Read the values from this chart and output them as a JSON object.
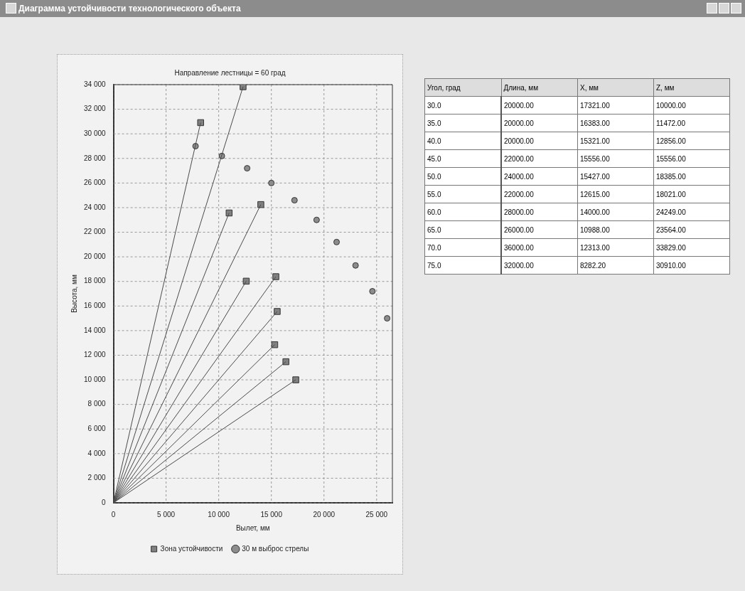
{
  "chart_data": [
    {
      "type": "scatter",
      "title": "Направление лестницы = 60 град",
      "xlabel": "Вылет, мм",
      "ylabel": "Высота, мм",
      "annotations": [
        "Диаграмма устойчивости технологического объекта"
      ],
      "xlim": [
        0,
        26500
      ],
      "xticks": [
        0,
        {
          "value": 5000,
          "label": "5 000"
        },
        {
          "value": 10000,
          "label": "10 000"
        },
        {
          "value": 15000,
          "label": "15 000"
        },
        {
          "value": 20000,
          "label": "20 000"
        },
        {
          "value": 25000,
          "label": "25 000"
        }
      ],
      "ylim": [
        0,
        34000
      ],
      "yticks": [
        0,
        {
          "value": 2000,
          "label": "2 000"
        },
        {
          "value": 4000,
          "label": "4 000"
        },
        {
          "value": 6000,
          "label": "6 000"
        },
        {
          "value": 8000,
          "label": "8 000"
        },
        {
          "value": 10000,
          "label": "10 000"
        },
        {
          "value": 12000,
          "label": "12 000"
        },
        {
          "value": 14000,
          "label": "14 000"
        },
        {
          "value": 16000,
          "label": "16 000"
        },
        {
          "value": 18000,
          "label": "18 000"
        },
        {
          "value": 20000,
          "label": "20 000"
        },
        {
          "value": 22000,
          "label": "22 000"
        },
        {
          "value": 24000,
          "label": "24 000"
        },
        {
          "value": 26000,
          "label": "26 000"
        },
        {
          "value": 28000,
          "label": "28 000"
        },
        {
          "value": 30000,
          "label": "30 000"
        },
        {
          "value": 32000,
          "label": "32 000"
        },
        {
          "value": 34000,
          "label": "34 000"
        }
      ],
      "grid": true,
      "legend": "bottom",
      "series": [
        {
          "type": "line",
          "color": "#4a4a4a",
          "marker": "none",
          "x": [
            0,
            17321
          ],
          "values": [
            0,
            10000
          ]
        },
        {
          "type": "line",
          "color": "#4a4a4a",
          "marker": "none",
          "x": [
            0,
            16383
          ],
          "values": [
            0,
            11472
          ]
        },
        {
          "type": "line",
          "color": "#4a4a4a",
          "marker": "none",
          "x": [
            0,
            15321
          ],
          "values": [
            0,
            12856
          ]
        },
        {
          "type": "line",
          "color": "#4a4a4a",
          "marker": "none",
          "x": [
            0,
            15556
          ],
          "values": [
            0,
            15556
          ]
        },
        {
          "type": "line",
          "color": "#4a4a4a",
          "marker": "none",
          "x": [
            0,
            15427
          ],
          "values": [
            0,
            18385
          ]
        },
        {
          "type": "line",
          "color": "#4a4a4a",
          "marker": "none",
          "x": [
            0,
            12615
          ],
          "values": [
            0,
            18021
          ]
        },
        {
          "type": "line",
          "color": "#4a4a4a",
          "marker": "none",
          "x": [
            0,
            14000
          ],
          "values": [
            0,
            24249
          ]
        },
        {
          "type": "line",
          "color": "#4a4a4a",
          "marker": "none",
          "x": [
            0,
            10988
          ],
          "values": [
            0,
            23564
          ]
        },
        {
          "type": "line",
          "color": "#4a4a4a",
          "marker": "none",
          "x": [
            0,
            12313
          ],
          "values": [
            0,
            33829
          ]
        },
        {
          "type": "line",
          "color": "#4a4a4a",
          "marker": "none",
          "x": [
            0,
            8282.2
          ],
          "values": [
            0,
            30910
          ]
        },
        {
          "type": "scatter",
          "name": "Зона устойчивости",
          "color": "#808080",
          "marker": "square",
          "x": [
            17321,
            16383,
            15321,
            15556,
            15427,
            12615,
            14000,
            10988,
            12313,
            8282.2
          ],
          "values": [
            10000,
            11472,
            12856,
            15556,
            18385,
            18021,
            24249,
            23564,
            33829,
            30910
          ]
        },
        {
          "type": "scatter",
          "name": "30 м выброс стрелы",
          "color": "#8c8c8c",
          "marker": "circle",
          "x": [
            7800,
            10300,
            12700,
            15000,
            17200,
            19300,
            21200,
            23000,
            24600,
            26000
          ],
          "values": [
            29000,
            28200,
            27200,
            26000,
            24600,
            23000,
            21200,
            19300,
            17200,
            15000
          ]
        }
      ]
    },
    {
      "type": "heatmap",
      "ylabel": "Угол, град",
      "categories": [
        "Длина, мм",
        "X, мм",
        "Z, мм"
      ],
      "y_categories": [
        "30.0",
        "35.0",
        "40.0",
        "45.0",
        "50.0",
        "55.0",
        "60.0",
        "65.0",
        "70.0",
        "75.0"
      ],
      "cells": [
        [
          20000,
          17321,
          10000
        ],
        [
          20000,
          16383,
          11472
        ],
        [
          20000,
          15321,
          12856
        ],
        [
          22000,
          15556,
          15556
        ],
        [
          24000,
          15427,
          18385
        ],
        [
          22000,
          12615,
          18021
        ],
        [
          28000,
          14000,
          24249
        ],
        [
          26000,
          10988,
          23564
        ],
        [
          36000,
          12313,
          33829
        ],
        [
          32000,
          8282.2,
          30910
        ]
      ],
      "cell_labels": [
        [
          "20000.00",
          "17321.00",
          "10000.00"
        ],
        [
          "20000.00",
          "16383.00",
          "11472.00"
        ],
        [
          "20000.00",
          "15321.00",
          "12856.00"
        ],
        [
          "22000.00",
          "15556.00",
          "15556.00"
        ],
        [
          "24000.00",
          "15427.00",
          "18385.00"
        ],
        [
          "22000.00",
          "12615.00",
          "18021.00"
        ],
        [
          "28000.00",
          "14000.00",
          "24249.00"
        ],
        [
          "26000.00",
          "10988.00",
          "23564.00"
        ],
        [
          "36000.00",
          "12313.00",
          "33829.00"
        ],
        [
          "32000.00",
          "8282.20",
          "30910.00"
        ]
      ]
    }
  ]
}
